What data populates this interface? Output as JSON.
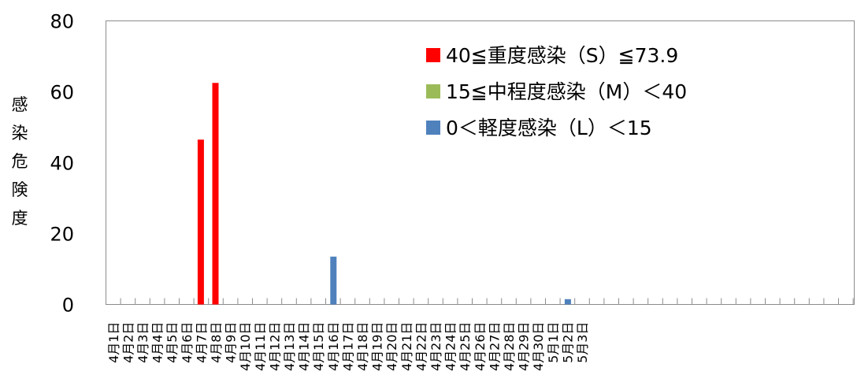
{
  "chart_data": {
    "type": "bar",
    "ylabel": "感染危険度",
    "ylim": [
      0,
      80
    ],
    "yticks": [
      "0",
      "20",
      "40",
      "60",
      "80"
    ],
    "categories": [
      "4月1日",
      "4月2日",
      "4月3日",
      "4月4日",
      "4月5日",
      "4月6日",
      "4月7日",
      "4月8日",
      "4月9日",
      "4月10日",
      "4月11日",
      "4月12日",
      "4月13日",
      "4月14日",
      "4月15日",
      "4月16日",
      "4月17日",
      "4月18日",
      "4月19日",
      "4月20日",
      "4月21日",
      "4月22日",
      "4月23日",
      "4月24日",
      "4月25日",
      "4月26日",
      "4月27日",
      "4月28日",
      "4月29日",
      "4月30日",
      "5月1日",
      "5月2日",
      "5月3日"
    ],
    "series": [
      {
        "name": "40≦重度感染(S)≦73.9",
        "color": "#ff0000",
        "values": [
          0,
          0,
          0,
          0,
          0,
          0,
          46.5,
          62.5,
          0,
          0,
          0,
          0,
          0,
          0,
          0,
          0,
          0,
          0,
          0,
          0,
          0,
          0,
          0,
          0,
          0,
          0,
          0,
          0,
          0,
          0,
          0,
          0,
          0
        ]
      },
      {
        "name": "15≦中程度感染(M)<40",
        "color": "#9bbb59",
        "values": [
          0,
          0,
          0,
          0,
          0,
          0,
          0,
          0,
          0,
          0,
          0,
          0,
          0,
          0,
          0,
          0,
          0,
          0,
          0,
          0,
          0,
          0,
          0,
          0,
          0,
          0,
          0,
          0,
          0,
          0,
          0,
          0,
          0
        ]
      },
      {
        "name": "0<軽度感染(L)<15",
        "color": "#4f81bd",
        "values": [
          0,
          0,
          0,
          0,
          0,
          0,
          0,
          0,
          0,
          0,
          0,
          0,
          0,
          0,
          0,
          13.5,
          0,
          0,
          0,
          0,
          0,
          0,
          0,
          0,
          0,
          0,
          0,
          0,
          0,
          0,
          0,
          1.5,
          0
        ]
      }
    ],
    "legend": [
      "40≦重度感染（S）≦73.9",
      "15≦中程度感染（M）＜40",
      "0＜軽度感染（L）＜15"
    ],
    "legend_position": "top-right",
    "grid": false
  }
}
